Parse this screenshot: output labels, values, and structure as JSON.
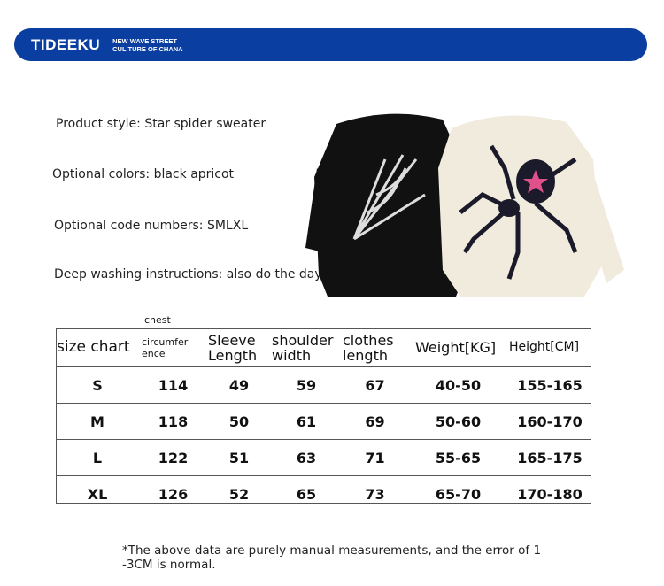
{
  "banner": {
    "brand": "TIDEEKU",
    "tagline_1": "NEW WAVE STREET",
    "tagline_2": "CUL TURE OF CHANA",
    "color": "#0a3ea0"
  },
  "info": {
    "style": "Product style: Star spider sweater",
    "colors": "Optional colors: black apricot",
    "sizes": "Optional code numbers: SMLXL",
    "washing": "Deep washing instructions: also do the day double"
  },
  "table": {
    "chest_label": "chest",
    "headers": [
      "size chart",
      "circumfer ence",
      "Sleeve Length",
      "shoulder width",
      "clothes length",
      "Weight[KG]",
      "Height[CM]"
    ],
    "rows": [
      [
        "S",
        "114",
        "49",
        "59",
        "67",
        "40-50",
        "155-165"
      ],
      [
        "M",
        "118",
        "50",
        "61",
        "69",
        "50-60",
        "160-170"
      ],
      [
        "L",
        "122",
        "51",
        "63",
        "71",
        "55-65",
        "165-175"
      ],
      [
        "XL",
        "126",
        "52",
        "65",
        "73",
        "65-70",
        "170-180"
      ]
    ]
  },
  "note": "*The above data are purely manual measurements, and the error of 1 -3CM is normal."
}
